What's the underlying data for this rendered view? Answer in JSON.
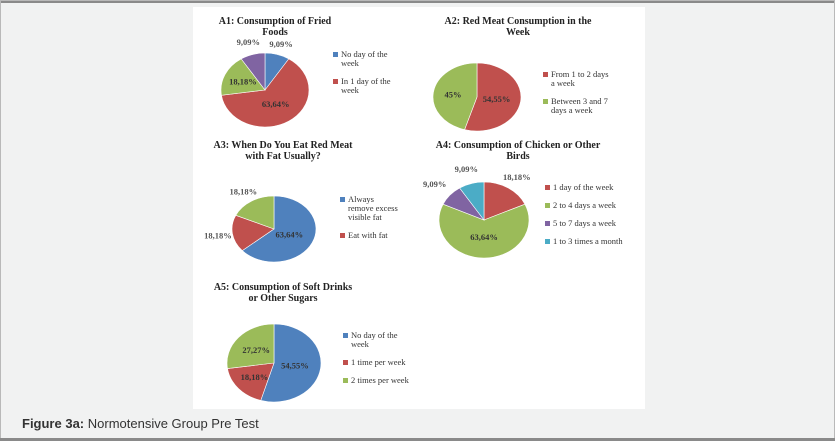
{
  "colors": {
    "blue": "#4f81bd",
    "red": "#c0504d",
    "green": "#9bbb59",
    "purple": "#8064a2",
    "teal": "#4bacc6"
  },
  "caption": {
    "label": "Figure 3a:",
    "text": "Normotensive Group Pre Test"
  },
  "chart_data": [
    {
      "type": "pie",
      "id": "a1",
      "title": "A1: Consumption of Fried Foods",
      "slices": [
        {
          "value": 9.09,
          "label": "9,09%",
          "color": "#4f81bd"
        },
        {
          "value": 63.64,
          "label": "63,64%",
          "color": "#c0504d"
        },
        {
          "value": 18.18,
          "label": "18,18%",
          "color": "#9bbb59"
        },
        {
          "value": 9.09,
          "label": "9,09%",
          "color": "#8064a2"
        }
      ],
      "legend": [
        {
          "label": "No day of the week",
          "color": "#4f81bd"
        },
        {
          "label": "In 1 day of the week",
          "color": "#c0504d"
        }
      ]
    },
    {
      "type": "pie",
      "id": "a2",
      "title": "A2: Red Meat Consumption in the Week",
      "slices": [
        {
          "value": 54.55,
          "label": "54,55%",
          "color": "#c0504d"
        },
        {
          "value": 45.45,
          "label": "45%",
          "color": "#9bbb59"
        }
      ],
      "legend": [
        {
          "label": "From 1 to 2 days a week",
          "color": "#c0504d"
        },
        {
          "label": "Between 3 and 7 days a week",
          "color": "#9bbb59"
        }
      ]
    },
    {
      "type": "pie",
      "id": "a3",
      "title": "A3: When Do You Eat Red Meat with Fat Usually?",
      "slices": [
        {
          "value": 63.64,
          "label": "63,64%",
          "color": "#4f81bd"
        },
        {
          "value": 18.18,
          "label": "18,18%",
          "color": "#c0504d"
        },
        {
          "value": 18.18,
          "label": "18,18%",
          "color": "#9bbb59"
        }
      ],
      "legend": [
        {
          "label": "Always remove excess visible fat",
          "color": "#4f81bd"
        },
        {
          "label": "Eat with fat",
          "color": "#c0504d"
        }
      ]
    },
    {
      "type": "pie",
      "id": "a4",
      "title": "A4: Consumption of Chicken or Other Birds",
      "slices": [
        {
          "value": 18.18,
          "label": "18,18%",
          "color": "#c0504d"
        },
        {
          "value": 63.64,
          "label": "63,64%",
          "color": "#9bbb59"
        },
        {
          "value": 9.09,
          "label": "9,09%",
          "color": "#8064a2"
        },
        {
          "value": 9.09,
          "label": "9,09%",
          "color": "#4bacc6"
        }
      ],
      "legend": [
        {
          "label": "1 day of the week",
          "color": "#c0504d"
        },
        {
          "label": "2 to 4 days a week",
          "color": "#9bbb59"
        },
        {
          "label": "5 to 7 days a week",
          "color": "#8064a2"
        },
        {
          "label": "1 to 3 times a month",
          "color": "#4bacc6"
        }
      ]
    },
    {
      "type": "pie",
      "id": "a5",
      "title": "A5: Consumption of Soft Drinks or Other Sugars",
      "slices": [
        {
          "value": 54.55,
          "label": "54,55%",
          "color": "#4f81bd"
        },
        {
          "value": 18.18,
          "label": "18,18%",
          "color": "#c0504d"
        },
        {
          "value": 27.27,
          "label": "27,27%",
          "color": "#9bbb59"
        }
      ],
      "legend": [
        {
          "label": "No day of the week",
          "color": "#4f81bd"
        },
        {
          "label": "1 time per week",
          "color": "#c0504d"
        },
        {
          "label": "2 times per week",
          "color": "#9bbb59"
        }
      ]
    }
  ]
}
